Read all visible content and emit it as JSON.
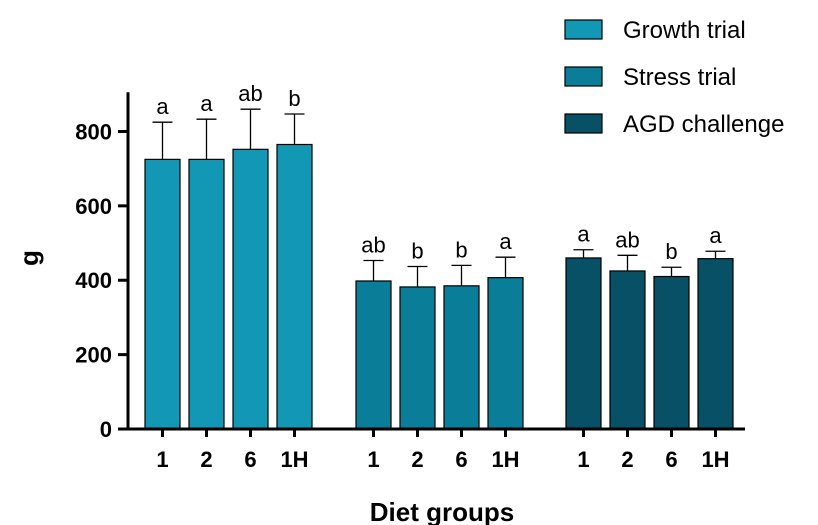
{
  "chart_data": {
    "type": "bar",
    "xlabel": "Diet groups",
    "ylabel": "g",
    "ylim": [
      0,
      900
    ],
    "yticks": [
      0,
      200,
      400,
      600,
      800
    ],
    "grid": false,
    "legend_position": "top-right",
    "error_bars": true,
    "groups": [
      {
        "name": "Growth trial",
        "color": "#1297b5",
        "categories": [
          "1",
          "2",
          "6",
          "1H"
        ],
        "values": [
          725,
          725,
          752,
          765
        ],
        "errors": [
          100,
          108,
          108,
          82
        ],
        "labels": [
          "a",
          "a",
          "ab",
          "b"
        ]
      },
      {
        "name": "Stress trial",
        "color": "#0a7d98",
        "categories": [
          "1",
          "2",
          "6",
          "1H"
        ],
        "values": [
          398,
          382,
          385,
          407
        ],
        "errors": [
          55,
          55,
          55,
          55
        ],
        "labels": [
          "ab",
          "b",
          "b",
          "a"
        ]
      },
      {
        "name": "AGD challenge",
        "color": "#075066",
        "categories": [
          "1",
          "2",
          "6",
          "1H"
        ],
        "values": [
          460,
          425,
          410,
          458
        ],
        "errors": [
          22,
          42,
          25,
          20
        ],
        "labels": [
          "a",
          "ab",
          "b",
          "a"
        ]
      }
    ]
  }
}
